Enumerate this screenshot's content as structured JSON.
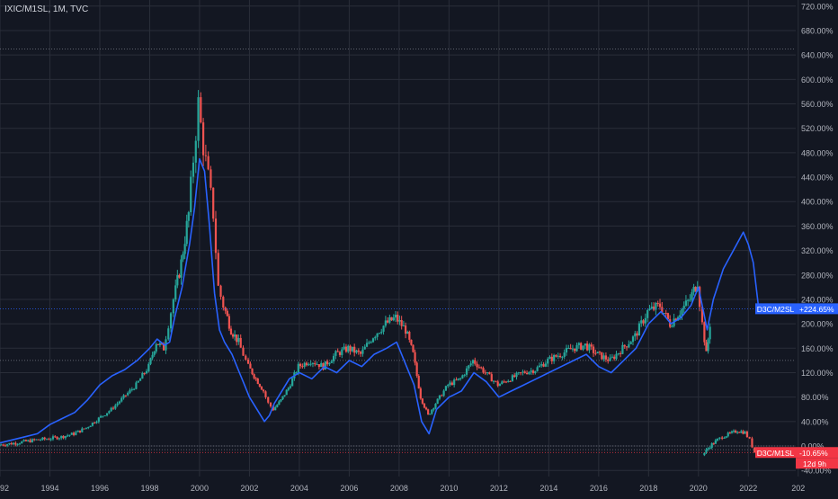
{
  "header": {
    "symbol_title": "IXIC/M1SL, 1M, TVC"
  },
  "colors": {
    "background": "#131722",
    "grid": "#2a2e39",
    "axis_text": "#b2b5be",
    "up_candle": "#26a69a",
    "down_candle": "#ef5350",
    "line_series": "#2962ff",
    "label_blue": "#2962ff",
    "label_red": "#f23645"
  },
  "chart_data": {
    "type": "line",
    "title": "IXIC/M1SL, 1M, TVC",
    "scale": "percent",
    "x_axis": {
      "tick_labels": [
        "1992",
        "1994",
        "1996",
        "1998",
        "2000",
        "2002",
        "2004",
        "2006",
        "2008",
        "2010",
        "2012",
        "2014",
        "2016",
        "2018",
        "2020",
        "2022",
        "202"
      ],
      "range": [
        1992.0,
        2023.9
      ]
    },
    "y_axis": {
      "tick_labels": [
        "720.00%",
        "680.00%",
        "640.00%",
        "600.00%",
        "560.00%",
        "520.00%",
        "480.00%",
        "440.00%",
        "400.00%",
        "360.00%",
        "320.00%",
        "280.00%",
        "240.00%",
        "200.00%",
        "160.00%",
        "120.00%",
        "80.00%",
        "40.00%",
        "0.00%",
        "-40.00%"
      ],
      "tick_values": [
        720,
        680,
        640,
        600,
        560,
        520,
        480,
        440,
        400,
        360,
        320,
        280,
        240,
        200,
        160,
        120,
        80,
        40,
        0,
        -40
      ],
      "range": [
        -50,
        730
      ],
      "grid": true
    },
    "series": [
      {
        "name": "IXIC/M1SL",
        "style": "candles",
        "x": [
          1992.0,
          1992.5,
          1993.0,
          1993.5,
          1994.0,
          1994.5,
          1995.0,
          1995.5,
          1996.0,
          1996.5,
          1997.0,
          1997.5,
          1998.0,
          1998.3,
          1998.6,
          1998.8,
          1999.0,
          1999.3,
          1999.6,
          1999.8,
          2000.0,
          2000.2,
          2000.4,
          2000.6,
          2000.8,
          2001.0,
          2001.3,
          2001.6,
          2001.8,
          2002.0,
          2002.3,
          2002.6,
          2002.8,
          2003.0,
          2003.3,
          2003.6,
          2004.0,
          2004.5,
          2005.0,
          2005.5,
          2006.0,
          2006.5,
          2007.0,
          2007.5,
          2007.9,
          2008.3,
          2008.6,
          2008.9,
          2009.2,
          2009.5,
          2010.0,
          2010.5,
          2011.0,
          2011.5,
          2012.0,
          2012.5,
          2013.0,
          2013.5,
          2014.0,
          2014.5,
          2015.0,
          2015.5,
          2016.0,
          2016.5,
          2017.0,
          2017.5,
          2018.0,
          2018.5,
          2018.9,
          2019.3,
          2019.7,
          2020.0,
          2020.2,
          2020.35,
          2020.5
        ],
        "values": [
          2,
          4,
          7,
          10,
          12,
          15,
          20,
          30,
          45,
          60,
          80,
          100,
          130,
          170,
          160,
          200,
          240,
          300,
          380,
          470,
          560,
          490,
          440,
          380,
          260,
          230,
          190,
          170,
          150,
          130,
          110,
          90,
          70,
          60,
          75,
          95,
          130,
          140,
          130,
          150,
          160,
          150,
          180,
          200,
          210,
          190,
          150,
          80,
          50,
          70,
          100,
          110,
          140,
          120,
          100,
          110,
          120,
          125,
          140,
          150,
          160,
          165,
          150,
          140,
          160,
          180,
          220,
          230,
          200,
          220,
          240,
          270,
          200,
          150,
          200
        ]
      },
      {
        "name": "D3C/M2SL",
        "style": "line",
        "x": [
          1992.0,
          1992.5,
          1993.0,
          1993.5,
          1994.0,
          1994.5,
          1995.0,
          1995.5,
          1996.0,
          1996.5,
          1997.0,
          1997.5,
          1998.0,
          1998.3,
          1998.6,
          1998.8,
          1999.0,
          1999.3,
          1999.6,
          1999.8,
          2000.0,
          2000.2,
          2000.4,
          2000.6,
          2000.8,
          2001.0,
          2001.3,
          2001.6,
          2001.8,
          2002.0,
          2002.3,
          2002.6,
          2002.8,
          2003.0,
          2003.3,
          2003.6,
          2004.0,
          2004.5,
          2005.0,
          2005.5,
          2006.0,
          2006.5,
          2007.0,
          2007.5,
          2007.9,
          2008.3,
          2008.6,
          2008.9,
          2009.2,
          2009.5,
          2010.0,
          2010.5,
          2011.0,
          2011.5,
          2012.0,
          2012.5,
          2013.0,
          2013.5,
          2014.0,
          2014.5,
          2015.0,
          2015.5,
          2016.0,
          2016.5,
          2017.0,
          2017.5,
          2018.0,
          2018.5,
          2018.9,
          2019.3,
          2019.7,
          2020.0,
          2020.2,
          2020.35,
          2020.6,
          2021.0,
          2021.4,
          2021.8,
          2022.0,
          2022.2,
          2022.4
        ],
        "values": [
          5,
          10,
          15,
          20,
          35,
          45,
          55,
          75,
          100,
          115,
          125,
          140,
          160,
          175,
          165,
          170,
          210,
          260,
          330,
          390,
          470,
          450,
          360,
          250,
          190,
          170,
          150,
          120,
          100,
          80,
          60,
          40,
          50,
          70,
          90,
          110,
          120,
          110,
          130,
          120,
          140,
          130,
          150,
          160,
          170,
          130,
          100,
          40,
          20,
          60,
          80,
          90,
          120,
          105,
          80,
          90,
          100,
          110,
          120,
          130,
          140,
          150,
          130,
          120,
          140,
          160,
          200,
          220,
          200,
          210,
          230,
          260,
          220,
          190,
          240,
          290,
          320,
          350,
          330,
          300,
          230
        ]
      },
      {
        "name": "D3C/M1SL",
        "style": "candles",
        "x": [
          2020.2,
          2020.5,
          2020.8,
          2021.0,
          2021.3,
          2021.6,
          2021.9,
          2022.1,
          2022.3
        ],
        "values": [
          -15,
          0,
          10,
          15,
          20,
          25,
          22,
          10,
          -10
        ]
      }
    ],
    "price_labels": [
      {
        "series": "D3C/M2SL",
        "label": "D3C/M2SL",
        "value_text": "+224.65%",
        "value": 224.65
      },
      {
        "series": "D3C/M1SL",
        "label": "D3C/M1SL",
        "value_text": "-10.65%",
        "value": -10.65,
        "countdown": "12d 9h"
      }
    ],
    "reference_lines": [
      650,
      140,
      0,
      -6
    ]
  }
}
